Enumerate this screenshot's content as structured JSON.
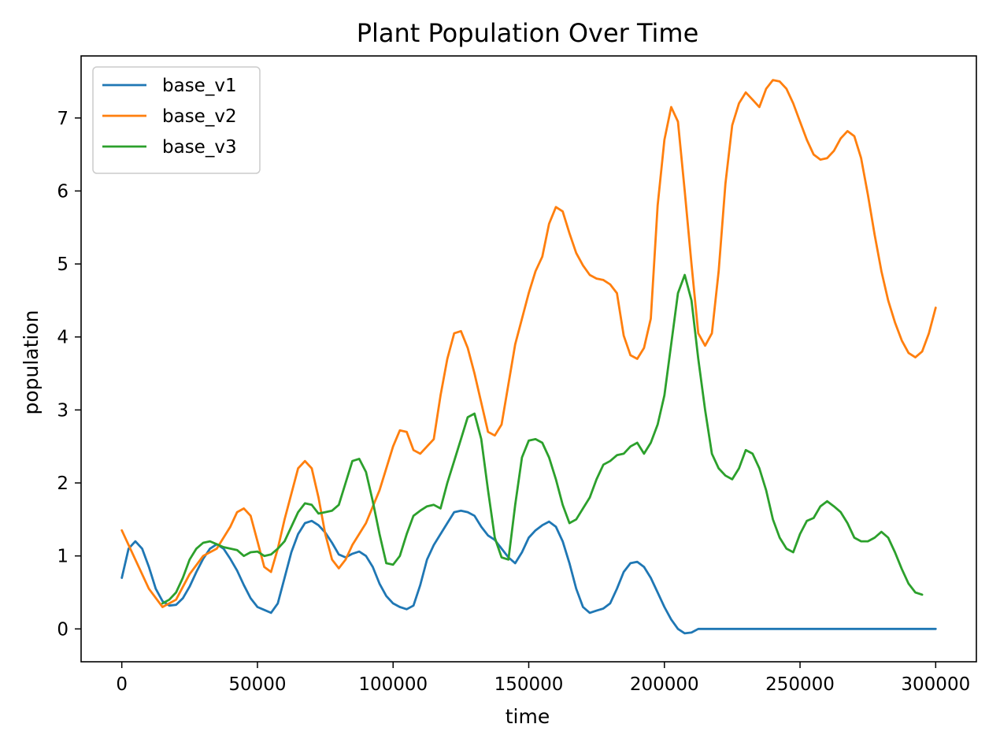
{
  "chart_data": {
    "type": "line",
    "title": "Plant Population Over Time",
    "xlabel": "time",
    "ylabel": "population",
    "xlim": [
      -15000,
      315000
    ],
    "ylim": [
      -0.45,
      7.85
    ],
    "xticks": [
      0,
      50000,
      100000,
      150000,
      200000,
      250000,
      300000
    ],
    "yticks": [
      0,
      1,
      2,
      3,
      4,
      5,
      6,
      7
    ],
    "grid": false,
    "legend_position": "top-left",
    "series": [
      {
        "name": "base_v1",
        "color": "#1f77b4",
        "x": [
          0,
          2500,
          5000,
          7500,
          10000,
          12500,
          15000,
          17500,
          20000,
          22500,
          25000,
          27500,
          30000,
          32500,
          35000,
          37500,
          40000,
          42500,
          45000,
          47500,
          50000,
          52500,
          55000,
          57500,
          60000,
          62500,
          65000,
          67500,
          70000,
          72500,
          75000,
          77500,
          80000,
          82500,
          85000,
          87500,
          90000,
          92500,
          95000,
          97500,
          100000,
          102500,
          105000,
          107500,
          110000,
          112500,
          115000,
          117500,
          120000,
          122500,
          125000,
          127500,
          130000,
          132500,
          135000,
          137500,
          140000,
          142500,
          145000,
          147500,
          150000,
          152500,
          155000,
          157500,
          160000,
          162500,
          165000,
          167500,
          170000,
          172500,
          175000,
          177500,
          180000,
          182500,
          185000,
          187500,
          190000,
          192500,
          195000,
          197500,
          200000,
          202500,
          205000,
          207500,
          210000,
          212500,
          215000,
          300000
        ],
        "values": [
          0.7,
          1.1,
          1.2,
          1.1,
          0.85,
          0.55,
          0.38,
          0.32,
          0.33,
          0.42,
          0.58,
          0.78,
          0.96,
          1.1,
          1.16,
          1.1,
          0.96,
          0.8,
          0.6,
          0.42,
          0.3,
          0.26,
          0.22,
          0.35,
          0.7,
          1.05,
          1.3,
          1.45,
          1.48,
          1.42,
          1.32,
          1.18,
          1.02,
          0.98,
          1.03,
          1.06,
          1.0,
          0.85,
          0.62,
          0.45,
          0.35,
          0.3,
          0.27,
          0.32,
          0.6,
          0.95,
          1.15,
          1.3,
          1.45,
          1.6,
          1.62,
          1.6,
          1.55,
          1.4,
          1.28,
          1.22,
          1.1,
          0.98,
          0.9,
          1.05,
          1.25,
          1.35,
          1.42,
          1.47,
          1.4,
          1.2,
          0.9,
          0.55,
          0.3,
          0.22,
          0.25,
          0.28,
          0.35,
          0.55,
          0.78,
          0.9,
          0.92,
          0.85,
          0.7,
          0.5,
          0.3,
          0.13,
          0.0,
          -0.06,
          -0.05,
          0.0,
          0.0,
          0.0
        ]
      },
      {
        "name": "base_v2",
        "color": "#ff7f0e",
        "x": [
          0,
          5000,
          10000,
          15000,
          20000,
          25000,
          30000,
          35000,
          40000,
          42500,
          45000,
          47500,
          50000,
          52500,
          55000,
          57500,
          60000,
          65000,
          67500,
          70000,
          72500,
          75000,
          77500,
          80000,
          82500,
          85000,
          90000,
          95000,
          100000,
          102500,
          105000,
          107500,
          110000,
          115000,
          117500,
          120000,
          122500,
          125000,
          127500,
          130000,
          132500,
          135000,
          137500,
          140000,
          145000,
          150000,
          152500,
          155000,
          157500,
          160000,
          162500,
          165000,
          167500,
          170000,
          172500,
          175000,
          177500,
          180000,
          182500,
          185000,
          187500,
          190000,
          192500,
          195000,
          197500,
          200000,
          202500,
          205000,
          207500,
          210000,
          212500,
          215000,
          217500,
          220000,
          222500,
          225000,
          227500,
          230000,
          232500,
          235000,
          237500,
          240000,
          242500,
          245000,
          247500,
          250000,
          252500,
          255000,
          257500,
          260000,
          262500,
          265000,
          267500,
          270000,
          272500,
          275000,
          277500,
          280000,
          282500,
          285000,
          287500,
          290000,
          292500,
          295000,
          297500,
          300000
        ],
        "values": [
          1.35,
          0.95,
          0.55,
          0.3,
          0.4,
          0.75,
          1.0,
          1.1,
          1.4,
          1.6,
          1.65,
          1.55,
          1.2,
          0.85,
          0.78,
          1.1,
          1.5,
          2.2,
          2.3,
          2.2,
          1.8,
          1.3,
          0.95,
          0.83,
          0.95,
          1.15,
          1.45,
          1.9,
          2.5,
          2.72,
          2.7,
          2.45,
          2.4,
          2.6,
          3.2,
          3.7,
          4.05,
          4.08,
          3.85,
          3.5,
          3.1,
          2.7,
          2.65,
          2.8,
          3.9,
          4.6,
          4.9,
          5.1,
          5.55,
          5.78,
          5.72,
          5.42,
          5.15,
          4.98,
          4.85,
          4.8,
          4.78,
          4.72,
          4.6,
          4.02,
          3.75,
          3.7,
          3.85,
          4.25,
          5.8,
          6.7,
          7.15,
          6.95,
          6.0,
          5.0,
          4.05,
          3.88,
          4.05,
          4.9,
          6.1,
          6.9,
          7.2,
          7.35,
          7.25,
          7.15,
          7.4,
          7.52,
          7.5,
          7.4,
          7.2,
          6.95,
          6.7,
          6.5,
          6.43,
          6.45,
          6.55,
          6.72,
          6.82,
          6.75,
          6.45,
          5.95,
          5.4,
          4.9,
          4.5,
          4.2,
          3.95,
          3.78,
          3.72,
          3.8,
          4.05,
          4.4
        ]
      },
      {
        "name": "base_v3",
        "color": "#2ca02c",
        "x": [
          15000,
          17500,
          20000,
          22500,
          25000,
          27500,
          30000,
          32500,
          35000,
          37500,
          40000,
          42500,
          45000,
          47500,
          50000,
          52500,
          55000,
          57500,
          60000,
          62500,
          65000,
          67500,
          70000,
          72500,
          75000,
          77500,
          80000,
          82500,
          85000,
          87500,
          90000,
          92500,
          95000,
          97500,
          100000,
          102500,
          105000,
          107500,
          110000,
          112500,
          115000,
          117500,
          120000,
          122500,
          125000,
          127500,
          130000,
          132500,
          135000,
          137500,
          140000,
          142500,
          145000,
          147500,
          150000,
          152500,
          155000,
          157500,
          160000,
          162500,
          165000,
          167500,
          170000,
          172500,
          175000,
          177500,
          180000,
          182500,
          185000,
          187500,
          190000,
          192500,
          195000,
          197500,
          200000,
          202500,
          205000,
          207500,
          210000,
          212500,
          215000,
          217500,
          220000,
          222500,
          225000,
          227500,
          230000,
          232500,
          235000,
          237500,
          240000,
          242500,
          245000,
          247500,
          250000,
          252500,
          255000,
          257500,
          260000,
          262500,
          265000,
          267500,
          270000,
          272500,
          275000,
          277500,
          280000,
          282500,
          285000,
          287500,
          290000,
          292500,
          295000
        ],
        "values": [
          0.35,
          0.4,
          0.5,
          0.7,
          0.95,
          1.1,
          1.18,
          1.2,
          1.16,
          1.12,
          1.1,
          1.08,
          1.0,
          1.05,
          1.06,
          1.0,
          1.02,
          1.1,
          1.2,
          1.4,
          1.6,
          1.72,
          1.7,
          1.58,
          1.6,
          1.62,
          1.7,
          2.0,
          2.3,
          2.33,
          2.15,
          1.75,
          1.3,
          0.9,
          0.88,
          1.0,
          1.3,
          1.55,
          1.62,
          1.68,
          1.7,
          1.65,
          2.0,
          2.3,
          2.6,
          2.9,
          2.95,
          2.6,
          1.9,
          1.25,
          0.98,
          0.95,
          1.7,
          2.35,
          2.58,
          2.6,
          2.55,
          2.35,
          2.05,
          1.7,
          1.45,
          1.5,
          1.65,
          1.8,
          2.05,
          2.25,
          2.3,
          2.38,
          2.4,
          2.5,
          2.55,
          2.4,
          2.55,
          2.8,
          3.2,
          3.9,
          4.6,
          4.85,
          4.5,
          3.7,
          3.0,
          2.4,
          2.2,
          2.1,
          2.05,
          2.2,
          2.45,
          2.4,
          2.2,
          1.9,
          1.5,
          1.25,
          1.1,
          1.05,
          1.3,
          1.48,
          1.52,
          1.68,
          1.75,
          1.68,
          1.6,
          1.45,
          1.25,
          1.2,
          1.2,
          1.25,
          1.33,
          1.25,
          1.05,
          0.82,
          0.62,
          0.5,
          0.47
        ]
      }
    ]
  }
}
